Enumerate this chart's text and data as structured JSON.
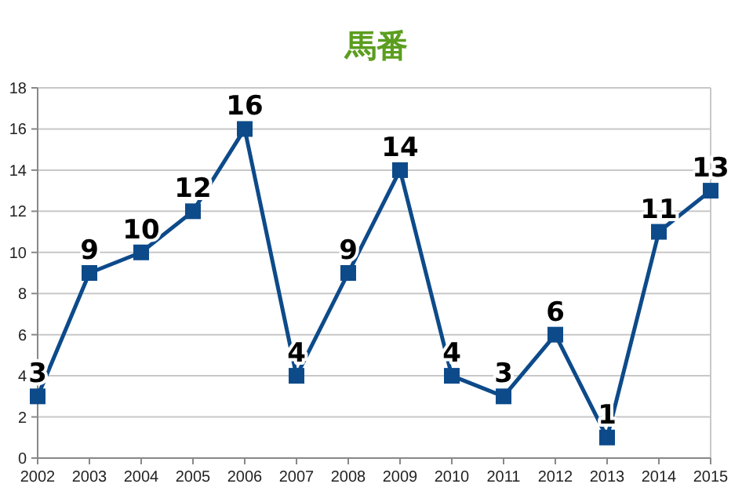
{
  "chart_data": {
    "type": "line",
    "title": "馬番",
    "categories": [
      "2002",
      "2003",
      "2004",
      "2005",
      "2006",
      "2007",
      "2008",
      "2009",
      "2010",
      "2011",
      "2012",
      "2013",
      "2014",
      "2015"
    ],
    "series": [
      {
        "color": "#0d4a8a",
        "values": [
          3,
          9,
          10,
          12,
          16,
          4,
          9,
          14,
          4,
          3,
          6,
          1,
          11,
          13
        ]
      }
    ],
    "ylim": [
      0,
      18
    ],
    "yticks": [
      0,
      2,
      4,
      6,
      8,
      10,
      12,
      14,
      16,
      18
    ],
    "grid": "y",
    "marker": "square",
    "line_style": "solid",
    "data_labels": true
  }
}
